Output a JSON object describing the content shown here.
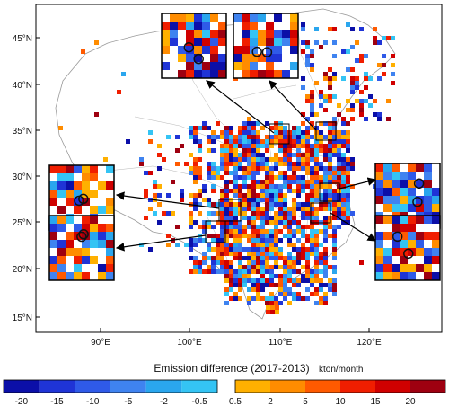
{
  "map": {
    "lat_ticks": [
      "45°N",
      "40°N",
      "35°N",
      "30°N",
      "25°N",
      "20°N",
      "15°N"
    ],
    "lon_ticks": [
      "90°E",
      "100°E",
      "110°E",
      "120°E"
    ],
    "extent": {
      "lon_min": 82,
      "lon_max": 128,
      "lat_min": 13.5,
      "lat_max": 48.5
    }
  },
  "colorbar": {
    "title": "Emission difference (2017-2013)",
    "unit": "kton/month",
    "negative_labels": [
      "-20",
      "-15",
      "-10",
      "-5",
      "-2",
      "-0.5"
    ],
    "positive_labels": [
      "0.5",
      "2",
      "5",
      "10",
      "15",
      "20"
    ],
    "negative_colors": [
      "#0b0fa8",
      "#1f34d6",
      "#2f5ae8",
      "#3f83f0",
      "#2aa6ee",
      "#34c4f4"
    ],
    "positive_colors": [
      "#ffb000",
      "#ff8c00",
      "#ff5a00",
      "#f01e00",
      "#d00000",
      "#9e0010"
    ]
  },
  "insets": [
    {
      "name": "inset-north-china-1"
    },
    {
      "name": "inset-north-china-2"
    },
    {
      "name": "inset-southwest-sichuan"
    },
    {
      "name": "inset-yunnan"
    },
    {
      "name": "inset-east-china"
    },
    {
      "name": "inset-south-east-coast"
    }
  ]
}
